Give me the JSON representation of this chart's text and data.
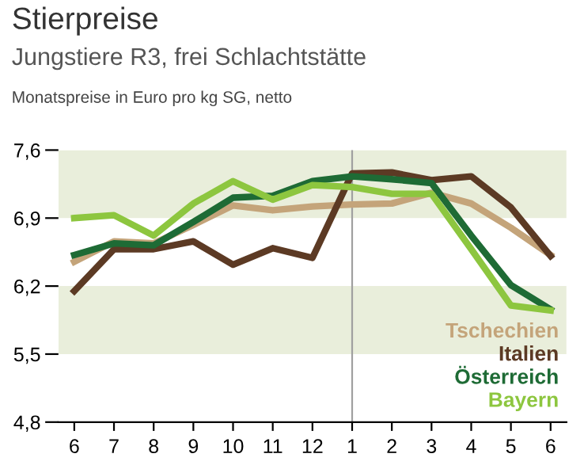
{
  "chart_data": {
    "type": "line",
    "title": "Stierpreise",
    "subtitle": "Jungstiere R3, frei Schlachtstätte",
    "annotations": [
      "Monatspreise in Euro pro kg SG, netto"
    ],
    "categories": [
      "6",
      "7",
      "8",
      "9",
      "10",
      "11",
      "12",
      "1",
      "2",
      "3",
      "4",
      "5",
      "6"
    ],
    "series": [
      {
        "name": "Tschechien",
        "color": "#c4a47a",
        "values": [
          6.45,
          6.66,
          6.64,
          6.83,
          7.03,
          6.98,
          7.02,
          7.04,
          7.05,
          7.16,
          7.05,
          6.8,
          6.52
        ]
      },
      {
        "name": "Italien",
        "color": "#5c3a24",
        "values": [
          6.15,
          6.58,
          6.58,
          6.66,
          6.42,
          6.59,
          6.49,
          7.36,
          7.37,
          7.29,
          7.33,
          7.01,
          6.51
        ]
      },
      {
        "name": "Österreich",
        "color": "#1e6b35",
        "values": [
          6.52,
          6.64,
          6.62,
          6.86,
          7.11,
          7.13,
          7.28,
          7.33,
          7.3,
          7.26,
          6.72,
          6.21,
          5.96
        ]
      },
      {
        "name": "Bayern",
        "color": "#8dc63f",
        "values": [
          6.9,
          6.93,
          6.72,
          7.05,
          7.28,
          7.09,
          7.24,
          7.22,
          7.15,
          7.15,
          6.58,
          6.0,
          5.95
        ]
      }
    ],
    "ylim": [
      4.8,
      7.6
    ],
    "yticks": [
      {
        "value": 4.8,
        "label": "4,8"
      },
      {
        "value": 5.5,
        "label": "5,5"
      },
      {
        "value": 6.2,
        "label": "6,2"
      },
      {
        "value": 6.9,
        "label": "6,9"
      },
      {
        "value": 7.6,
        "label": "7,6"
      }
    ],
    "bands": [
      {
        "axis": "y",
        "from": 6.9,
        "to": 7.6,
        "color": "#e9eedb"
      },
      {
        "axis": "y",
        "from": 5.5,
        "to": 6.2,
        "color": "#e9eedb"
      }
    ],
    "ref_lines": [
      {
        "axis": "x",
        "value": "1",
        "color": "#a0a0a0"
      }
    ],
    "legend": "bottom right",
    "grid": false,
    "marker": "none",
    "line_style": "solid"
  }
}
